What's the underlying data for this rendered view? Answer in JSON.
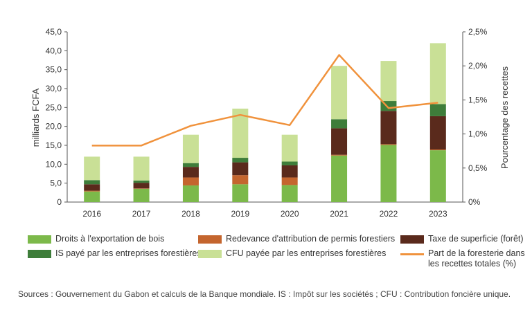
{
  "chart_data": {
    "type": "bar",
    "stacked": true,
    "categories": [
      "2016",
      "2017",
      "2018",
      "2019",
      "2020",
      "2021",
      "2022",
      "2023"
    ],
    "y_left": {
      "label": "milliards FCFA",
      "min": 0,
      "max": 45,
      "ticks": [
        "0",
        "5,0",
        "10,0",
        "15,0",
        "20,0",
        "25,0",
        "30,0",
        "35,0",
        "40,0",
        "45,0"
      ],
      "tick_values": [
        0,
        5,
        10,
        15,
        20,
        25,
        30,
        35,
        40,
        45
      ]
    },
    "y_right": {
      "label": "Pourcentage des recettes",
      "min": 0,
      "max": 2.5,
      "ticks": [
        "0%",
        "0,5%",
        "1,0%",
        "1,5%",
        "2,0%",
        "2,5%"
      ],
      "tick_values": [
        0,
        0.5,
        1.0,
        1.5,
        2.0,
        2.5
      ]
    },
    "series": [
      {
        "name": "Droits à l'exportation de bois",
        "color": "#7cb94a",
        "values": [
          2.8,
          3.5,
          4.4,
          4.7,
          4.5,
          12.3,
          15.1,
          13.7
        ]
      },
      {
        "name": "Redevance d'attribution de permis forestiers",
        "color": "#c4652e",
        "values": [
          0.2,
          0.1,
          2.1,
          2.4,
          2.0,
          0.2,
          0.2,
          0.2
        ]
      },
      {
        "name": "Taxe de superficie (forêt)",
        "color": "#5a2a1c",
        "values": [
          1.7,
          1.5,
          2.8,
          3.4,
          3.2,
          7.0,
          8.8,
          8.8
        ]
      },
      {
        "name": "IS payé par les entreprises forestières",
        "color": "#3e7d3a",
        "values": [
          1.1,
          0.6,
          1.0,
          1.2,
          1.0,
          2.4,
          2.6,
          3.2
        ]
      },
      {
        "name": "CFU payée par les entreprises forestières",
        "color": "#c9e096",
        "values": [
          6.2,
          6.3,
          7.5,
          13.0,
          7.1,
          14.1,
          10.6,
          16.1
        ]
      }
    ],
    "line": {
      "name": "Part de la foresterie dans les recettes totales (%)",
      "color": "#f0923c",
      "axis": "right",
      "values": [
        0.83,
        0.83,
        1.12,
        1.28,
        1.13,
        2.16,
        1.38,
        1.46
      ]
    },
    "grid": false,
    "legend_position": "bottom"
  },
  "source_note": "Sources : Gouvernement du Gabon et calculs de la Banque mondiale. IS : Impôt sur les sociétés ; CFU : Contribution foncière unique."
}
